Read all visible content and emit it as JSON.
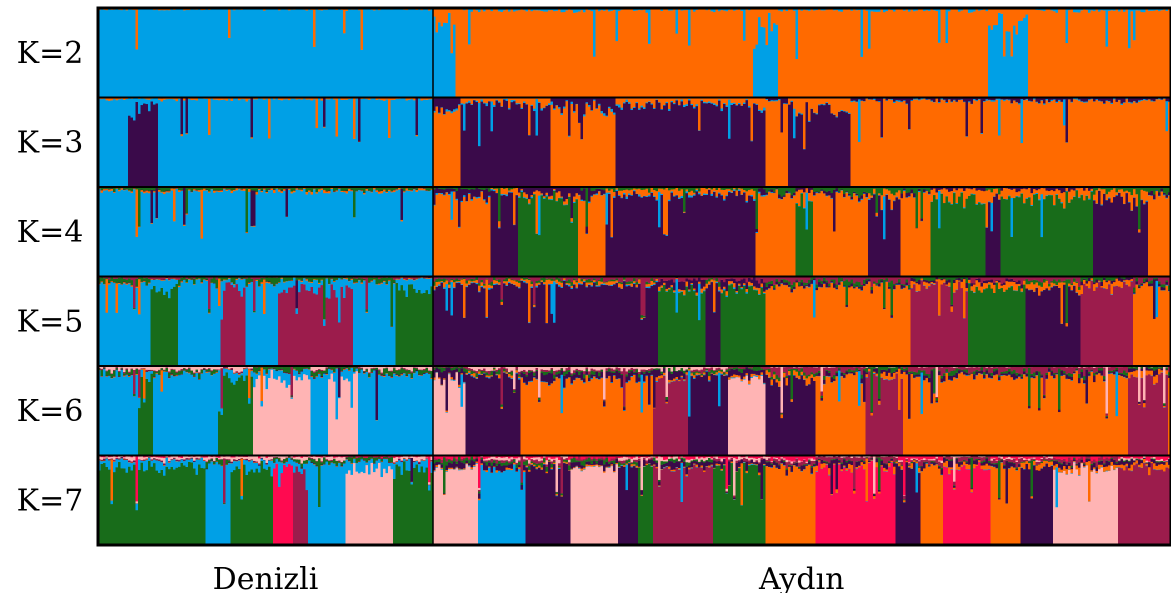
{
  "chart_data": {
    "type": "bar",
    "subtype": "stacked-admixture-structure-plot",
    "title": "",
    "xlabel": "",
    "ylabel": "",
    "ylim": [
      0,
      1
    ],
    "populations": [
      {
        "name": "Denizli",
        "share": 0.313
      },
      {
        "name": "Aydın",
        "share": 0.687
      }
    ],
    "cluster_colors": [
      "#00a0e6",
      "#ff6a00",
      "#3a0a4a",
      "#186c1a",
      "#9c1c4c",
      "#ffb4b4",
      "#ff0a50"
    ],
    "panels": [
      {
        "label": "K=2",
        "k": 2,
        "segments": [
          {
            "population": "Denizli",
            "span": 1.0,
            "proportions": [
              0.93,
              0.07
            ]
          },
          {
            "population": "Aydın",
            "span": 1.0,
            "proportions": [
              0.12,
              0.88
            ]
          }
        ]
      },
      {
        "label": "K=3",
        "k": 3,
        "segments": [
          {
            "population": "Denizli",
            "span": 1.0,
            "proportions": [
              0.9,
              0.08,
              0.02
            ]
          },
          {
            "population": "Aydın",
            "span": 0.45,
            "proportions": [
              0.08,
              0.35,
              0.57
            ]
          },
          {
            "population": "Aydın",
            "span": 0.55,
            "proportions": [
              0.04,
              0.8,
              0.16
            ]
          }
        ]
      },
      {
        "label": "K=4",
        "k": 4,
        "segments": [
          {
            "population": "Denizli",
            "span": 1.0,
            "proportions": [
              0.75,
              0.08,
              0.02,
              0.15
            ]
          },
          {
            "population": "Aydın",
            "span": 0.45,
            "proportions": [
              0.06,
              0.3,
              0.5,
              0.14
            ]
          },
          {
            "population": "Aydın",
            "span": 0.55,
            "proportions": [
              0.03,
              0.5,
              0.17,
              0.3
            ]
          }
        ]
      },
      {
        "label": "K=5",
        "k": 5,
        "segments": [
          {
            "population": "Denizli",
            "span": 1.0,
            "proportions": [
              0.62,
              0.04,
              0.02,
              0.22,
              0.1
            ]
          },
          {
            "population": "Aydın",
            "span": 0.45,
            "proportions": [
              0.05,
              0.18,
              0.42,
              0.15,
              0.2
            ]
          },
          {
            "population": "Aydın",
            "span": 0.55,
            "proportions": [
              0.02,
              0.35,
              0.15,
              0.18,
              0.3
            ]
          }
        ]
      },
      {
        "label": "K=6",
        "k": 6,
        "segments": [
          {
            "population": "Denizli",
            "span": 1.0,
            "proportions": [
              0.5,
              0.03,
              0.03,
              0.2,
              0.04,
              0.2
            ]
          },
          {
            "population": "Aydın",
            "span": 0.45,
            "proportions": [
              0.04,
              0.12,
              0.38,
              0.14,
              0.12,
              0.2
            ]
          },
          {
            "population": "Aydın",
            "span": 0.55,
            "proportions": [
              0.02,
              0.3,
              0.18,
              0.15,
              0.3,
              0.05
            ]
          }
        ]
      },
      {
        "label": "K=7",
        "k": 7,
        "segments": [
          {
            "population": "Denizli",
            "span": 1.0,
            "proportions": [
              0.48,
              0.02,
              0.03,
              0.2,
              0.04,
              0.16,
              0.07
            ]
          },
          {
            "population": "Aydın",
            "span": 0.45,
            "proportions": [
              0.03,
              0.08,
              0.3,
              0.17,
              0.12,
              0.15,
              0.15
            ]
          },
          {
            "population": "Aydın",
            "span": 0.55,
            "proportions": [
              0.02,
              0.25,
              0.2,
              0.05,
              0.2,
              0.08,
              0.2
            ]
          }
        ]
      }
    ]
  }
}
